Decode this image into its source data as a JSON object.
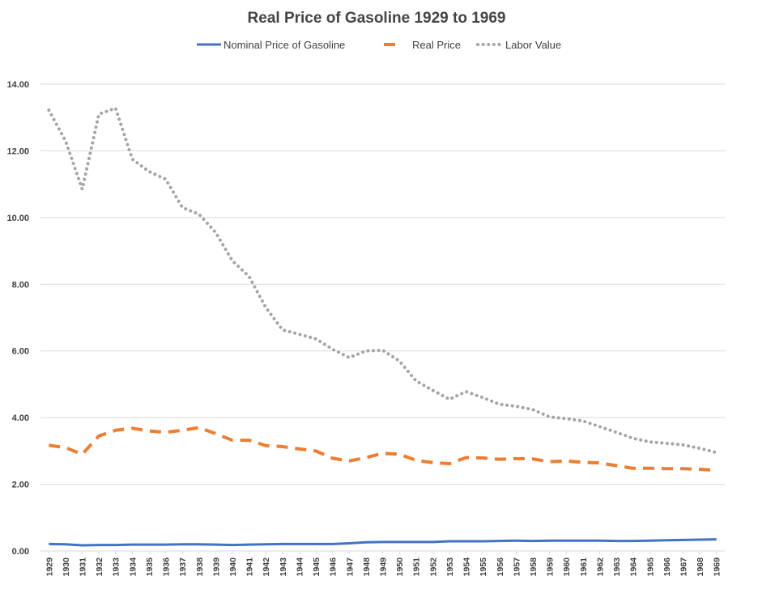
{
  "chart_data": {
    "type": "line",
    "title": "Real Price of Gasoline 1929 to 1969",
    "xlabel": "",
    "ylabel": "",
    "ylim": [
      0,
      14
    ],
    "yticks": [
      "0.00",
      "2.00",
      "4.00",
      "6.00",
      "8.00",
      "10.00",
      "12.00",
      "14.00"
    ],
    "grid": true,
    "legend_position": "top",
    "categories": [
      "1929",
      "1930",
      "1931",
      "1932",
      "1933",
      "1934",
      "1935",
      "1936",
      "1937",
      "1938",
      "1939",
      "1940",
      "1941",
      "1942",
      "1943",
      "1944",
      "1945",
      "1946",
      "1947",
      "1948",
      "1949",
      "1950",
      "1951",
      "1952",
      "1953",
      "1954",
      "1955",
      "1956",
      "1957",
      "1958",
      "1959",
      "1960",
      "1961",
      "1962",
      "1963",
      "1964",
      "1965",
      "1966",
      "1967",
      "1968",
      "1969"
    ],
    "series": [
      {
        "name": "Nominal Price of Gasoline",
        "color": "#4472c4",
        "style": "solid",
        "values": [
          0.21,
          0.2,
          0.17,
          0.18,
          0.18,
          0.19,
          0.19,
          0.19,
          0.2,
          0.2,
          0.19,
          0.18,
          0.19,
          0.2,
          0.21,
          0.21,
          0.21,
          0.21,
          0.23,
          0.26,
          0.27,
          0.27,
          0.27,
          0.27,
          0.29,
          0.29,
          0.29,
          0.3,
          0.31,
          0.3,
          0.31,
          0.31,
          0.31,
          0.31,
          0.3,
          0.3,
          0.31,
          0.32,
          0.33,
          0.34,
          0.35
        ]
      },
      {
        "name": "Real Price",
        "color": "#ed7d31",
        "style": "dashed",
        "values": [
          3.17,
          3.1,
          2.9,
          3.45,
          3.62,
          3.68,
          3.6,
          3.56,
          3.62,
          3.7,
          3.52,
          3.32,
          3.32,
          3.16,
          3.13,
          3.06,
          3.0,
          2.78,
          2.7,
          2.8,
          2.93,
          2.9,
          2.72,
          2.65,
          2.62,
          2.8,
          2.79,
          2.75,
          2.77,
          2.76,
          2.68,
          2.7,
          2.66,
          2.64,
          2.56,
          2.48,
          2.48,
          2.47,
          2.47,
          2.45,
          2.42
        ]
      },
      {
        "name": "Labor Value",
        "color": "#a5a5a5",
        "style": "dotted",
        "values": [
          13.22,
          12.3,
          10.85,
          13.1,
          13.28,
          11.75,
          11.38,
          11.15,
          10.3,
          10.1,
          9.55,
          8.7,
          8.23,
          7.3,
          6.63,
          6.5,
          6.36,
          6.05,
          5.8,
          6.0,
          6.02,
          5.7,
          5.1,
          4.82,
          4.55,
          4.78,
          4.6,
          4.4,
          4.34,
          4.24,
          4.02,
          3.97,
          3.9,
          3.73,
          3.56,
          3.38,
          3.27,
          3.23,
          3.18,
          3.08,
          2.95
        ]
      }
    ]
  }
}
